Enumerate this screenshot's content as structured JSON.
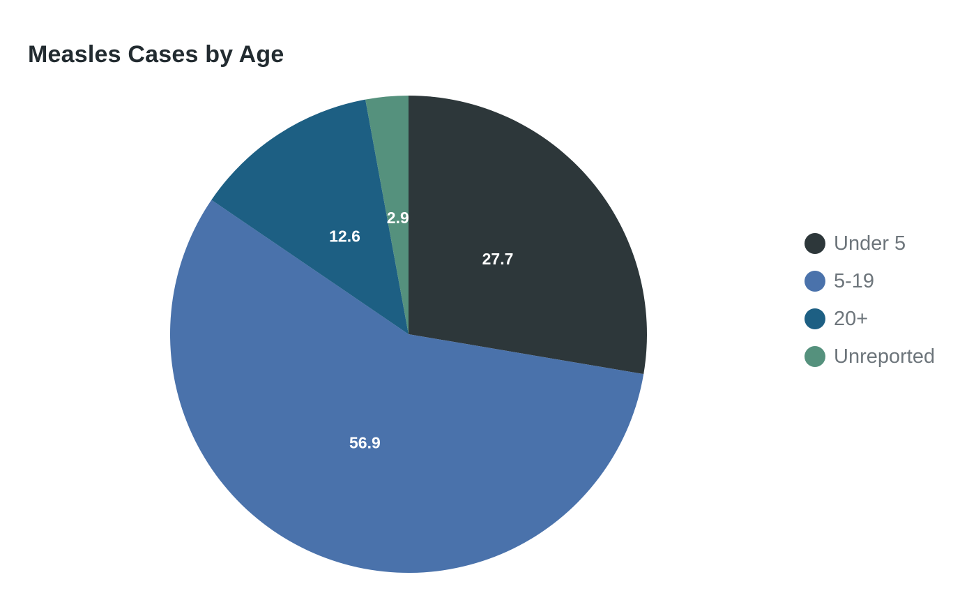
{
  "chart_data": {
    "type": "pie",
    "title": "Measles Cases by Age",
    "labels": [
      "Under 5",
      "5-19",
      "20+",
      "Unreported"
    ],
    "values": [
      27.7,
      56.9,
      12.6,
      2.9
    ],
    "value_labels": [
      "27.7",
      "56.9",
      "12.6",
      "2.9"
    ],
    "colors": [
      "#2d373a",
      "#4a72ab",
      "#1d5f83",
      "#55917d"
    ],
    "start_angle": "12 o'clock",
    "direction": "clockwise",
    "legend_position": "right",
    "grid": "off",
    "background_color": "#ffffff",
    "title_color": "#222b30",
    "legend_text_color": "#6d757b",
    "slice_label_color": "#ffffff"
  }
}
